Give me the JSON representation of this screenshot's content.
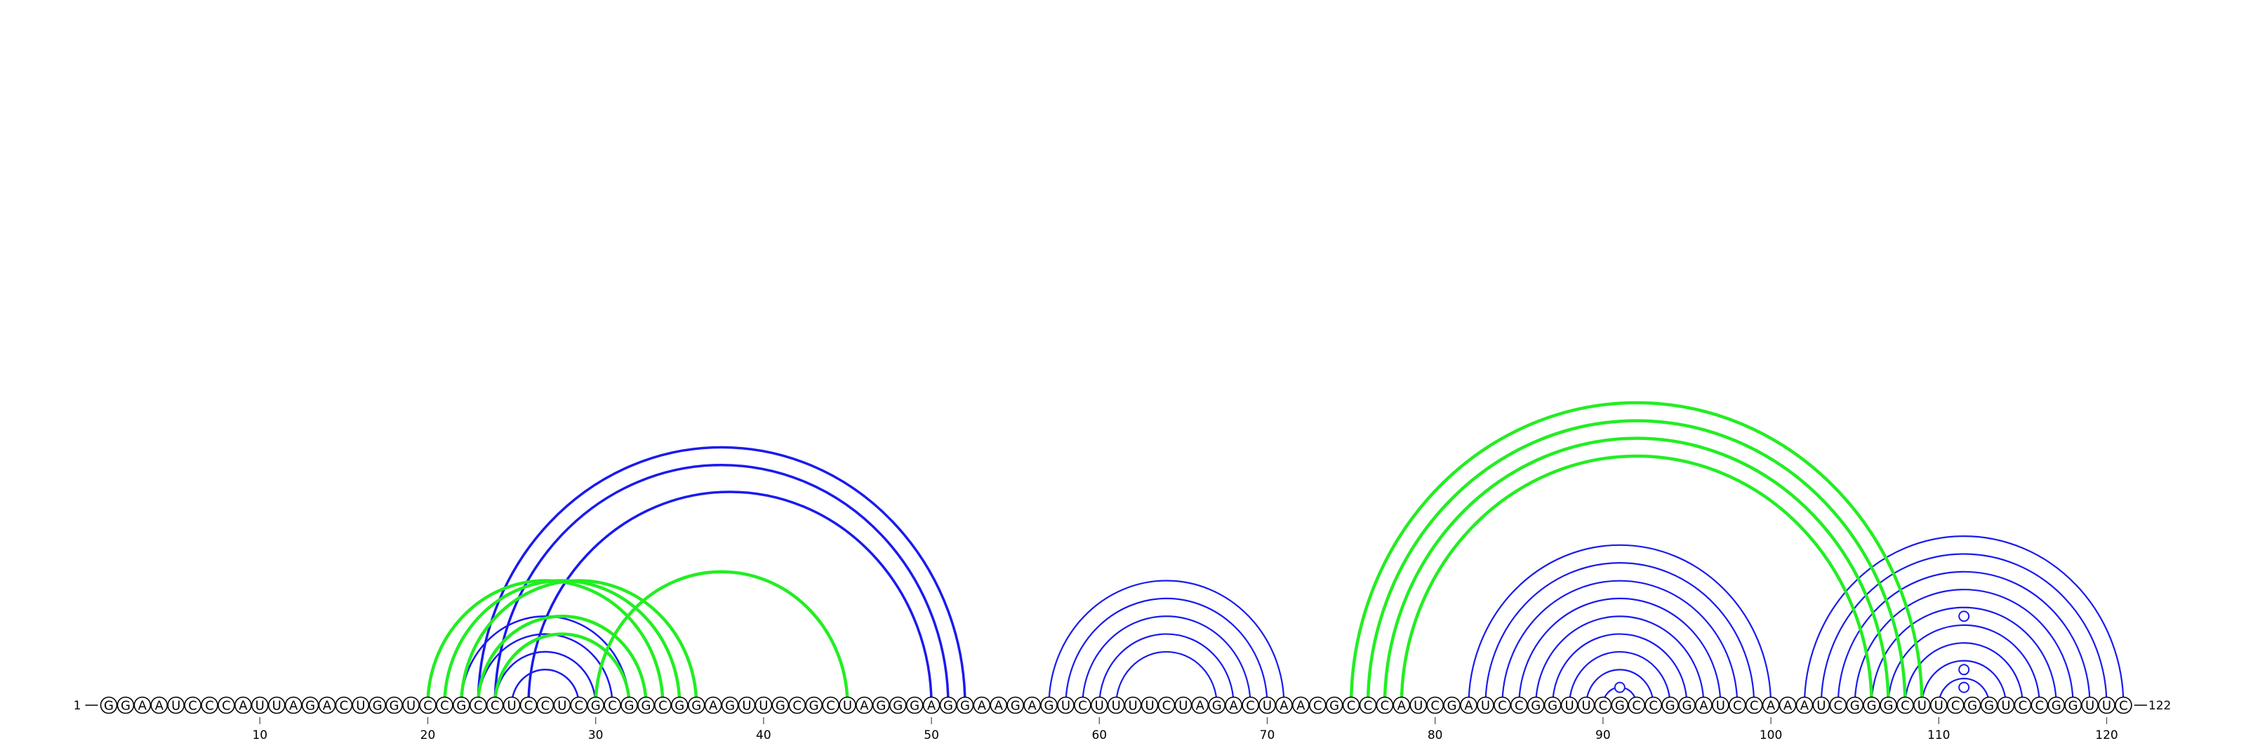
{
  "sequence": "GGAAUCCCAUUAGACUGGUCCGCCUCCUCGCGGCGGAGUUGCGCUAGGGAGGAAGAGUCUUUUCUAGACUAACGCCCAUCGAUCCGGUUCGCCGGAUCCAAAUCGGGCUUCGGUCCGGUUC",
  "start_label": "1",
  "end_label": "122",
  "ticks": [
    "10",
    "20",
    "30",
    "40",
    "50",
    "60",
    "70",
    "80",
    "90",
    "100",
    "110",
    "120"
  ],
  "colors": {
    "blue": "#1a1aee",
    "green": "#22ee22",
    "tick": "#555555",
    "line": "#000000"
  },
  "arc_groups": [
    {
      "color": "blue",
      "lw": 3.5,
      "pairs": [
        [
          23,
          52
        ],
        [
          24,
          51
        ],
        [
          26,
          50
        ]
      ]
    },
    {
      "color": "blue",
      "lw": 2.5,
      "pairs": [
        [
          22,
          32
        ],
        [
          23,
          31
        ],
        [
          24,
          30
        ],
        [
          25,
          29
        ]
      ]
    },
    {
      "color": "blue",
      "lw": 2.2,
      "pairs": [
        [
          57,
          71
        ],
        [
          58,
          70
        ],
        [
          59,
          69
        ],
        [
          60,
          68
        ],
        [
          61,
          67
        ]
      ]
    },
    {
      "color": "blue",
      "lw": 2.2,
      "pairs": [
        [
          82,
          100
        ],
        [
          83,
          99
        ],
        [
          84,
          98
        ],
        [
          85,
          97
        ],
        [
          86,
          96
        ],
        [
          87,
          95
        ],
        [
          88,
          94
        ],
        [
          89,
          93
        ],
        [
          90,
          92
        ]
      ]
    },
    {
      "color": "blue",
      "lw": 2.2,
      "pairs": [
        [
          102,
          121
        ],
        [
          103,
          120
        ],
        [
          104,
          119
        ],
        [
          105,
          118
        ],
        [
          106,
          117
        ],
        [
          107,
          116
        ],
        [
          108,
          115
        ],
        [
          109,
          114
        ],
        [
          110,
          113
        ]
      ]
    },
    {
      "color": "green",
      "lw": 4.5,
      "pairs": [
        [
          20,
          34
        ],
        [
          21,
          35
        ],
        [
          22,
          36
        ],
        [
          23,
          33
        ],
        [
          24,
          32
        ]
      ]
    },
    {
      "color": "green",
      "lw": 4.5,
      "pairs": [
        [
          30,
          45
        ]
      ]
    },
    {
      "color": "green",
      "lw": 4.5,
      "pairs": [
        [
          75,
          109
        ],
        [
          76,
          108
        ],
        [
          77,
          107
        ],
        [
          78,
          106
        ]
      ]
    }
  ],
  "markers": [
    {
      "color": "blue",
      "center": 91,
      "height": 2
    },
    {
      "color": "blue",
      "center": 111.5,
      "height": 2
    },
    {
      "color": "blue",
      "center": 111.5,
      "height": 4
    },
    {
      "color": "blue",
      "center": 111.5,
      "height": 10
    }
  ]
}
